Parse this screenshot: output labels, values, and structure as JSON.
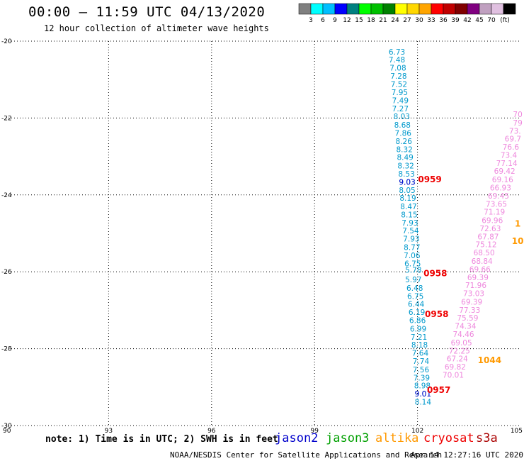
{
  "header": {
    "title": "00:00 – 11:59 UTC 04/13/2020",
    "subtitle": "12 hour collection of altimeter wave heights"
  },
  "footer": {
    "note": "note: 1) Time is in UTC; 2) SWH is in feet",
    "credit": "NOAA/NESDIS Center for Satellite Applications and Research",
    "timestamp": "Apr 14 12:27:16 UTC 2020"
  },
  "colorbar": {
    "unit": "(ft)",
    "colors": [
      "#808080",
      "#00ffff",
      "#00bfff",
      "#0000ff",
      "#008080",
      "#00ff00",
      "#00c000",
      "#008000",
      "#ffff00",
      "#ffd700",
      "#ffa500",
      "#ff0000",
      "#c00000",
      "#800000",
      "#800080",
      "#c0a0c0",
      "#e0c0e0",
      "#000000"
    ],
    "labels": [
      "3",
      "6",
      "9",
      "12",
      "15",
      "18",
      "21",
      "24",
      "27",
      "30",
      "33",
      "36",
      "39",
      "42",
      "45",
      "70"
    ]
  },
  "satellites": [
    {
      "name": "jason2",
      "color": "#0000cc"
    },
    {
      "name": "jason3",
      "color": "#00a000"
    },
    {
      "name": "altika",
      "color": "#ff9900"
    },
    {
      "name": "cryosat",
      "color": "#ee0000"
    },
    {
      "name": "s3a",
      "color": "#aa0000"
    }
  ],
  "chart_data": {
    "type": "scatter",
    "title": "00:00 – 11:59 UTC 04/13/2020",
    "subtitle": "12 hour collection of altimeter wave heights",
    "xlim": [
      90,
      105
    ],
    "ylim": [
      -30,
      -20
    ],
    "xticks": [
      "90",
      "93",
      "96",
      "99",
      "102",
      "105"
    ],
    "xtick_values": [
      90,
      93,
      96,
      99,
      102,
      105
    ],
    "yticks": [
      "-20",
      "-22",
      "-24",
      "-26",
      "-28",
      "-30"
    ],
    "ytick_values": [
      -20,
      -22,
      -24,
      -26,
      -28,
      -30
    ],
    "grid": true,
    "series": [
      {
        "name": "jason3",
        "color": "#0099cc",
        "points": [
          {
            "x": 101.4,
            "y": -20.28,
            "label": "6.73"
          },
          {
            "x": 101.4,
            "y": -20.48,
            "label": "7.48"
          },
          {
            "x": 101.43,
            "y": -20.69,
            "label": "7.08"
          },
          {
            "x": 101.45,
            "y": -20.9,
            "label": "7.28"
          },
          {
            "x": 101.46,
            "y": -21.12,
            "label": "7.52"
          },
          {
            "x": 101.48,
            "y": -21.33,
            "label": "7.95"
          },
          {
            "x": 101.5,
            "y": -21.54,
            "label": "7.49"
          },
          {
            "x": 101.5,
            "y": -21.75,
            "label": "7.27"
          },
          {
            "x": 101.54,
            "y": -21.96,
            "label": "8.03"
          },
          {
            "x": 101.56,
            "y": -22.18,
            "label": "8.68"
          },
          {
            "x": 101.58,
            "y": -22.39,
            "label": "7.86"
          },
          {
            "x": 101.6,
            "y": -22.6,
            "label": "8.26"
          },
          {
            "x": 101.62,
            "y": -22.81,
            "label": "8.32"
          },
          {
            "x": 101.64,
            "y": -23.02,
            "label": "8.49"
          },
          {
            "x": 101.66,
            "y": -23.24,
            "label": "8.32"
          },
          {
            "x": 101.68,
            "y": -23.45,
            "label": "8.53"
          },
          {
            "x": 101.7,
            "y": -23.66,
            "label": "9.03"
          },
          {
            "x": 101.7,
            "y": -23.87,
            "label": "8.05"
          },
          {
            "x": 101.72,
            "y": -24.08,
            "label": "8.19"
          },
          {
            "x": 101.74,
            "y": -24.3,
            "label": "8.47"
          },
          {
            "x": 101.76,
            "y": -24.51,
            "label": "8.15"
          },
          {
            "x": 101.78,
            "y": -24.72,
            "label": "7.93"
          },
          {
            "x": 101.8,
            "y": -24.93,
            "label": "7.54"
          },
          {
            "x": 101.82,
            "y": -25.14,
            "label": "7.93"
          },
          {
            "x": 101.84,
            "y": -25.36,
            "label": "8.77"
          },
          {
            "x": 101.84,
            "y": -25.57,
            "label": "7.06"
          },
          {
            "x": 101.86,
            "y": -25.78,
            "label": "6.75"
          },
          {
            "x": 101.88,
            "y": -25.95,
            "label": "5.78"
          },
          {
            "x": 101.88,
            "y": -26.2,
            "label": "5.97"
          },
          {
            "x": 101.92,
            "y": -26.42,
            "label": "6.48"
          },
          {
            "x": 101.94,
            "y": -26.63,
            "label": "6.75"
          },
          {
            "x": 101.96,
            "y": -26.84,
            "label": "6.44"
          },
          {
            "x": 101.98,
            "y": -27.05,
            "label": "6.19"
          },
          {
            "x": 102.0,
            "y": -27.26,
            "label": "6.86"
          },
          {
            "x": 102.02,
            "y": -27.48,
            "label": "6.99"
          },
          {
            "x": 102.04,
            "y": -27.69,
            "label": "7.21"
          },
          {
            "x": 102.06,
            "y": -27.9,
            "label": "8.18"
          },
          {
            "x": 102.08,
            "y": -28.11,
            "label": "7.64"
          },
          {
            "x": 102.1,
            "y": -28.32,
            "label": "7.74"
          },
          {
            "x": 102.1,
            "y": -28.54,
            "label": "7.56"
          },
          {
            "x": 102.12,
            "y": -28.75,
            "label": "7.39"
          },
          {
            "x": 102.14,
            "y": -28.96,
            "label": "8.98"
          },
          {
            "x": 102.16,
            "y": -29.17,
            "label": "9.01"
          },
          {
            "x": 102.16,
            "y": -29.38,
            "label": "8.14"
          }
        ]
      },
      {
        "name": "jason2",
        "color": "#0000cc",
        "points": [
          {
            "x": 101.7,
            "y": -23.66,
            "label": "9.03"
          },
          {
            "x": 102.16,
            "y": -29.17,
            "label": "9.01"
          }
        ]
      },
      {
        "name": "s3a",
        "color": "#ee88dd",
        "points": [
          {
            "x": 104.92,
            "y": -21.9,
            "label": "70"
          },
          {
            "x": 104.92,
            "y": -22.12,
            "label": "79"
          },
          {
            "x": 104.84,
            "y": -22.33,
            "label": "73."
          },
          {
            "x": 104.78,
            "y": -22.54,
            "label": "69.7"
          },
          {
            "x": 104.72,
            "y": -22.75,
            "label": "76.6"
          },
          {
            "x": 104.66,
            "y": -22.96,
            "label": "73.4"
          },
          {
            "x": 104.6,
            "y": -23.17,
            "label": "77.14"
          },
          {
            "x": 104.54,
            "y": -23.38,
            "label": "69.42"
          },
          {
            "x": 104.48,
            "y": -23.6,
            "label": "69.16"
          },
          {
            "x": 104.42,
            "y": -23.81,
            "label": "66.93"
          },
          {
            "x": 104.36,
            "y": -24.02,
            "label": "69.45"
          },
          {
            "x": 104.3,
            "y": -24.23,
            "label": "73.65"
          },
          {
            "x": 104.24,
            "y": -24.44,
            "label": "71.19"
          },
          {
            "x": 104.18,
            "y": -24.66,
            "label": "69.96"
          },
          {
            "x": 104.12,
            "y": -24.87,
            "label": "72.63"
          },
          {
            "x": 104.06,
            "y": -25.08,
            "label": "67.87"
          },
          {
            "x": 104.0,
            "y": -25.29,
            "label": "75.12"
          },
          {
            "x": 103.94,
            "y": -25.5,
            "label": "68.50"
          },
          {
            "x": 103.88,
            "y": -25.72,
            "label": "68.84"
          },
          {
            "x": 103.82,
            "y": -25.93,
            "label": "69.66"
          },
          {
            "x": 103.76,
            "y": -26.14,
            "label": "69.39"
          },
          {
            "x": 103.7,
            "y": -26.35,
            "label": "71.96"
          },
          {
            "x": 103.64,
            "y": -26.56,
            "label": "73.03"
          },
          {
            "x": 103.58,
            "y": -26.78,
            "label": "69.39"
          },
          {
            "x": 103.52,
            "y": -26.99,
            "label": "77.33"
          },
          {
            "x": 103.46,
            "y": -27.2,
            "label": "75.59"
          },
          {
            "x": 103.4,
            "y": -27.41,
            "label": "74.34"
          },
          {
            "x": 103.34,
            "y": -27.62,
            "label": "74.46"
          },
          {
            "x": 103.28,
            "y": -27.84,
            "label": "69.05"
          },
          {
            "x": 103.22,
            "y": -28.05,
            "label": "72.25"
          },
          {
            "x": 103.16,
            "y": -28.26,
            "label": "67.24"
          },
          {
            "x": 103.1,
            "y": -28.47,
            "label": "69.82"
          },
          {
            "x": 103.04,
            "y": -28.68,
            "label": "70.01"
          }
        ]
      },
      {
        "name": "cryosat",
        "color": "#ee0000",
        "points": [
          {
            "x": 102.36,
            "y": -23.6,
            "label": "0959"
          },
          {
            "x": 102.52,
            "y": -26.04,
            "label": "0958"
          },
          {
            "x": 102.56,
            "y": -27.1,
            "label": "0958"
          },
          {
            "x": 102.62,
            "y": -29.08,
            "label": "0957"
          }
        ]
      },
      {
        "name": "altika",
        "color": "#ff9900",
        "points": [
          {
            "x": 104.92,
            "y": -24.75,
            "label": "1"
          },
          {
            "x": 104.92,
            "y": -25.2,
            "label": "10"
          },
          {
            "x": 104.1,
            "y": -28.3,
            "label": "1044"
          }
        ]
      }
    ]
  }
}
